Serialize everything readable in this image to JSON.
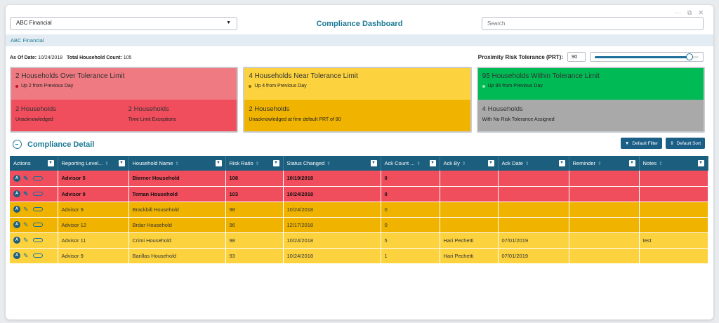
{
  "header": {
    "firm_select": "ABC Financial",
    "title": "Compliance Dashboard",
    "search_placeholder": "Search"
  },
  "window_controls": [
    "minimize-icon",
    "popout-icon",
    "close-icon"
  ],
  "breadcrumb": "ABC Financial",
  "summary": {
    "as_of_label": "As Of Date:",
    "as_of_value": "10/24/2018",
    "count_label": "Total Household Count:",
    "count_value": "105"
  },
  "prt": {
    "label": "Proximity Risk Tolerance (PRT):",
    "value": "90",
    "slider_fraction": 0.9
  },
  "cards": {
    "over": {
      "title": "2 Households Over Tolerance Limit",
      "sub": "Up 2 from Previous Day",
      "left_h": "2 Households",
      "left_s": "Unacknowledged",
      "right_h": "2 Households",
      "right_s": "Time Limit Exceptions"
    },
    "near": {
      "title": "4 Households Near Tolerance Limit",
      "sub": "Up 4 from Previous Day",
      "bottom_h": "2 Households",
      "bottom_s": "Unacknowledged at firm default PRT of 90"
    },
    "within": {
      "title": "95 Households Within Tolerance Limit",
      "sub": "Up 95 from Previous Day",
      "bottom_h": "4 Households",
      "bottom_s": "With No Risk Tolerance Assigned"
    }
  },
  "detail": {
    "title": "Compliance Detail",
    "filter_btn": "Default Filter",
    "sort_btn": "Default Sort"
  },
  "table": {
    "headers": [
      "Actions",
      "Reporting Level...",
      "Household Name",
      "Risk Ratio",
      "Status Changed",
      "Ack Count ...",
      "Ack By",
      "Ack Date",
      "Reminder",
      "Notes"
    ],
    "rows": [
      {
        "status": "red",
        "cells": [
          "Advisor 5",
          "Bierner Household",
          "108",
          "10/19/2018",
          "0",
          "",
          "",
          "",
          ""
        ]
      },
      {
        "status": "red",
        "cells": [
          "Advisor 9",
          "Teman Household",
          "103",
          "10/24/2018",
          "0",
          "",
          "",
          "",
          ""
        ]
      },
      {
        "status": "orange",
        "cells": [
          "Advisor 9",
          "Brackbill Household",
          "98",
          "10/24/2018",
          "0",
          "",
          "",
          "",
          ""
        ]
      },
      {
        "status": "orange",
        "cells": [
          "Advisor 12",
          "Brdar Household",
          "96",
          "12/17/2018",
          "0",
          "",
          "",
          "",
          ""
        ]
      },
      {
        "status": "yellow",
        "cells": [
          "Advisor 11",
          "Crimi Household",
          "98",
          "10/24/2018",
          "5",
          "Hari Pechetti",
          "07/01/2019",
          "",
          "test"
        ]
      },
      {
        "status": "yellow",
        "cells": [
          "Advisor 9",
          "Barillas Household",
          "93",
          "10/24/2018",
          "1",
          "Hari Pechetti",
          "07/01/2019",
          "",
          ""
        ]
      }
    ]
  },
  "colors": {
    "accent": "#1c7a95",
    "header_bg": "#1b5e7e",
    "red": "#f04e5d",
    "red_light": "#f07a82",
    "orange": "#f0b400",
    "yellow": "#fcd33f",
    "green": "#00bb55",
    "gray": "#a9a9a9"
  }
}
